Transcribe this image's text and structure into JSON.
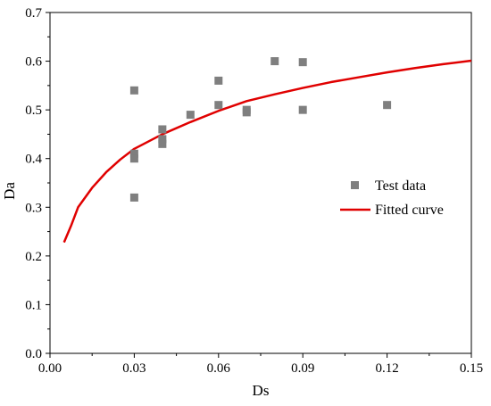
{
  "chart_data": {
    "type": "scatter",
    "xlabel": "Ds",
    "ylabel": "Da",
    "xlim": [
      0,
      0.15
    ],
    "ylim": [
      0,
      0.7
    ],
    "x_ticks": [
      "0.00",
      "0.03",
      "0.06",
      "0.09",
      "0.12",
      "0.15"
    ],
    "y_ticks": [
      "0.0",
      "0.1",
      "0.2",
      "0.3",
      "0.4",
      "0.5",
      "0.6",
      "0.7"
    ],
    "grid": false,
    "legend_position": "right",
    "series": [
      {
        "name": "Test data",
        "kind": "scatter",
        "color": "#7f7f7f",
        "marker": "square",
        "points": [
          {
            "x": 0.03,
            "y": 0.54
          },
          {
            "x": 0.03,
            "y": 0.41
          },
          {
            "x": 0.03,
            "y": 0.4
          },
          {
            "x": 0.03,
            "y": 0.32
          },
          {
            "x": 0.04,
            "y": 0.46
          },
          {
            "x": 0.04,
            "y": 0.44
          },
          {
            "x": 0.04,
            "y": 0.43
          },
          {
            "x": 0.05,
            "y": 0.49
          },
          {
            "x": 0.06,
            "y": 0.56
          },
          {
            "x": 0.06,
            "y": 0.51
          },
          {
            "x": 0.07,
            "y": 0.5
          },
          {
            "x": 0.07,
            "y": 0.495
          },
          {
            "x": 0.08,
            "y": 0.6
          },
          {
            "x": 0.09,
            "y": 0.598
          },
          {
            "x": 0.09,
            "y": 0.5
          },
          {
            "x": 0.12,
            "y": 0.51
          }
        ]
      },
      {
        "name": "Fitted curve",
        "kind": "line",
        "color": "#e00000",
        "points": [
          {
            "x": 0.005,
            "y": 0.228
          },
          {
            "x": 0.0075,
            "y": 0.262
          },
          {
            "x": 0.01,
            "y": 0.3
          },
          {
            "x": 0.015,
            "y": 0.34
          },
          {
            "x": 0.02,
            "y": 0.372
          },
          {
            "x": 0.025,
            "y": 0.398
          },
          {
            "x": 0.03,
            "y": 0.42
          },
          {
            "x": 0.04,
            "y": 0.45
          },
          {
            "x": 0.05,
            "y": 0.475
          },
          {
            "x": 0.06,
            "y": 0.498
          },
          {
            "x": 0.07,
            "y": 0.518
          },
          {
            "x": 0.08,
            "y": 0.532
          },
          {
            "x": 0.09,
            "y": 0.545
          },
          {
            "x": 0.1,
            "y": 0.557
          },
          {
            "x": 0.11,
            "y": 0.567
          },
          {
            "x": 0.12,
            "y": 0.577
          },
          {
            "x": 0.13,
            "y": 0.586
          },
          {
            "x": 0.14,
            "y": 0.594
          },
          {
            "x": 0.15,
            "y": 0.601
          }
        ]
      }
    ]
  }
}
